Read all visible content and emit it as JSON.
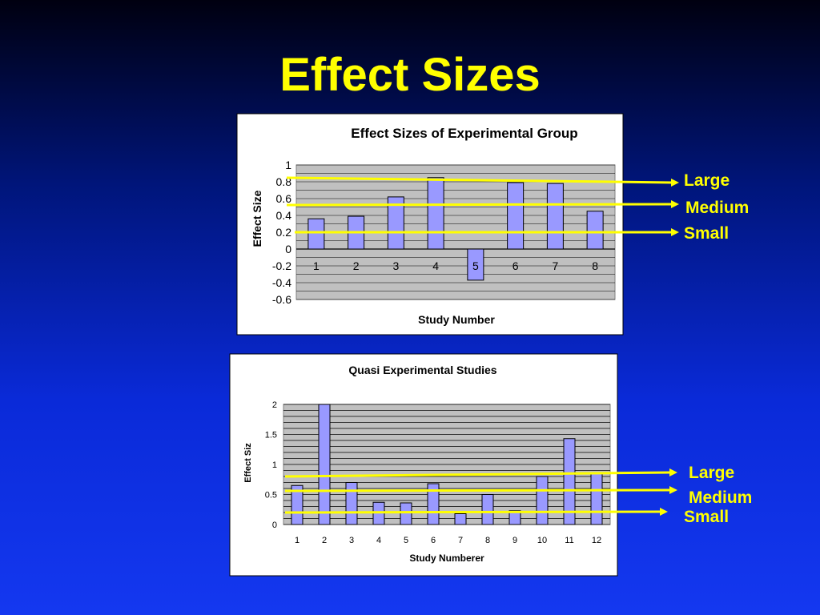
{
  "slide": {
    "title": "Effect Sizes"
  },
  "colors": {
    "title": "#ffff00",
    "bar_fill": "#9999ff",
    "plot_bg": "#c0c0c0",
    "arrow": "#ffff00",
    "annotation_text": "#ffff00"
  },
  "chart_data": [
    {
      "type": "bar",
      "title": "Effect Sizes of Experimental Group",
      "xlabel": "Study Number",
      "ylabel": "Effect Size",
      "categories": [
        "1",
        "2",
        "3",
        "4",
        "5",
        "6",
        "7",
        "8"
      ],
      "values": [
        0.36,
        0.39,
        0.62,
        0.85,
        -0.37,
        0.79,
        0.78,
        0.45
      ],
      "ylim": [
        -0.6,
        1
      ],
      "yticks": [
        "1",
        "0.8",
        "0.6",
        "0.4",
        "0.2",
        "0",
        "-0.2",
        "-0.4",
        "-0.6"
      ],
      "grid": true,
      "annotations": [
        {
          "label": "Large",
          "level": 0.8
        },
        {
          "label": "Medium",
          "level": 0.5
        },
        {
          "label": "Small",
          "level": 0.2
        }
      ]
    },
    {
      "type": "bar",
      "title": "Quasi Experimental Studies",
      "xlabel": "Study Numberer",
      "ylabel": "Effect Siz",
      "categories": [
        "1",
        "2",
        "3",
        "4",
        "5",
        "6",
        "7",
        "8",
        "9",
        "10",
        "11",
        "12"
      ],
      "values": [
        0.65,
        2.0,
        0.7,
        0.37,
        0.36,
        0.68,
        0.18,
        0.5,
        0.23,
        0.8,
        1.43,
        0.85
      ],
      "ylim": [
        0,
        2
      ],
      "yticks": [
        "2",
        "1.5",
        "1",
        "0.5",
        "0"
      ],
      "grid": true,
      "annotations": [
        {
          "label": "Large",
          "level": 0.8
        },
        {
          "label": "Medium",
          "level": 0.5
        },
        {
          "label": "Small",
          "level": 0.2
        }
      ]
    }
  ]
}
